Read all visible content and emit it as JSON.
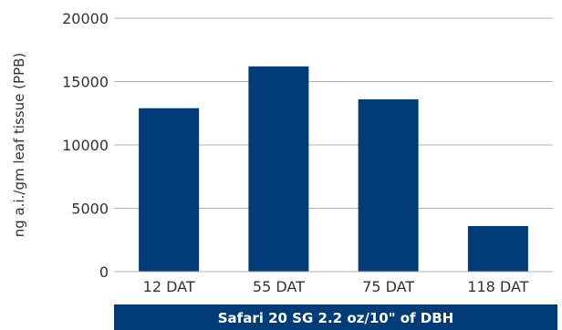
{
  "chart_data": {
    "type": "bar",
    "categories": [
      "12 DAT",
      "55 DAT",
      "75 DAT",
      "118 DAT"
    ],
    "values": [
      12900,
      16200,
      13600,
      3600
    ],
    "ylabel": "ng a.i./gm leaf tissue (PPB)",
    "xlabel": "Safari 20 SG 2.2 oz/10\" of DBH",
    "ylim": [
      0,
      20000
    ],
    "yticks": [
      0,
      5000,
      10000,
      15000,
      20000
    ],
    "grid": true,
    "bar_color": "#003c78",
    "xlabel_band_color": "#003c78"
  }
}
